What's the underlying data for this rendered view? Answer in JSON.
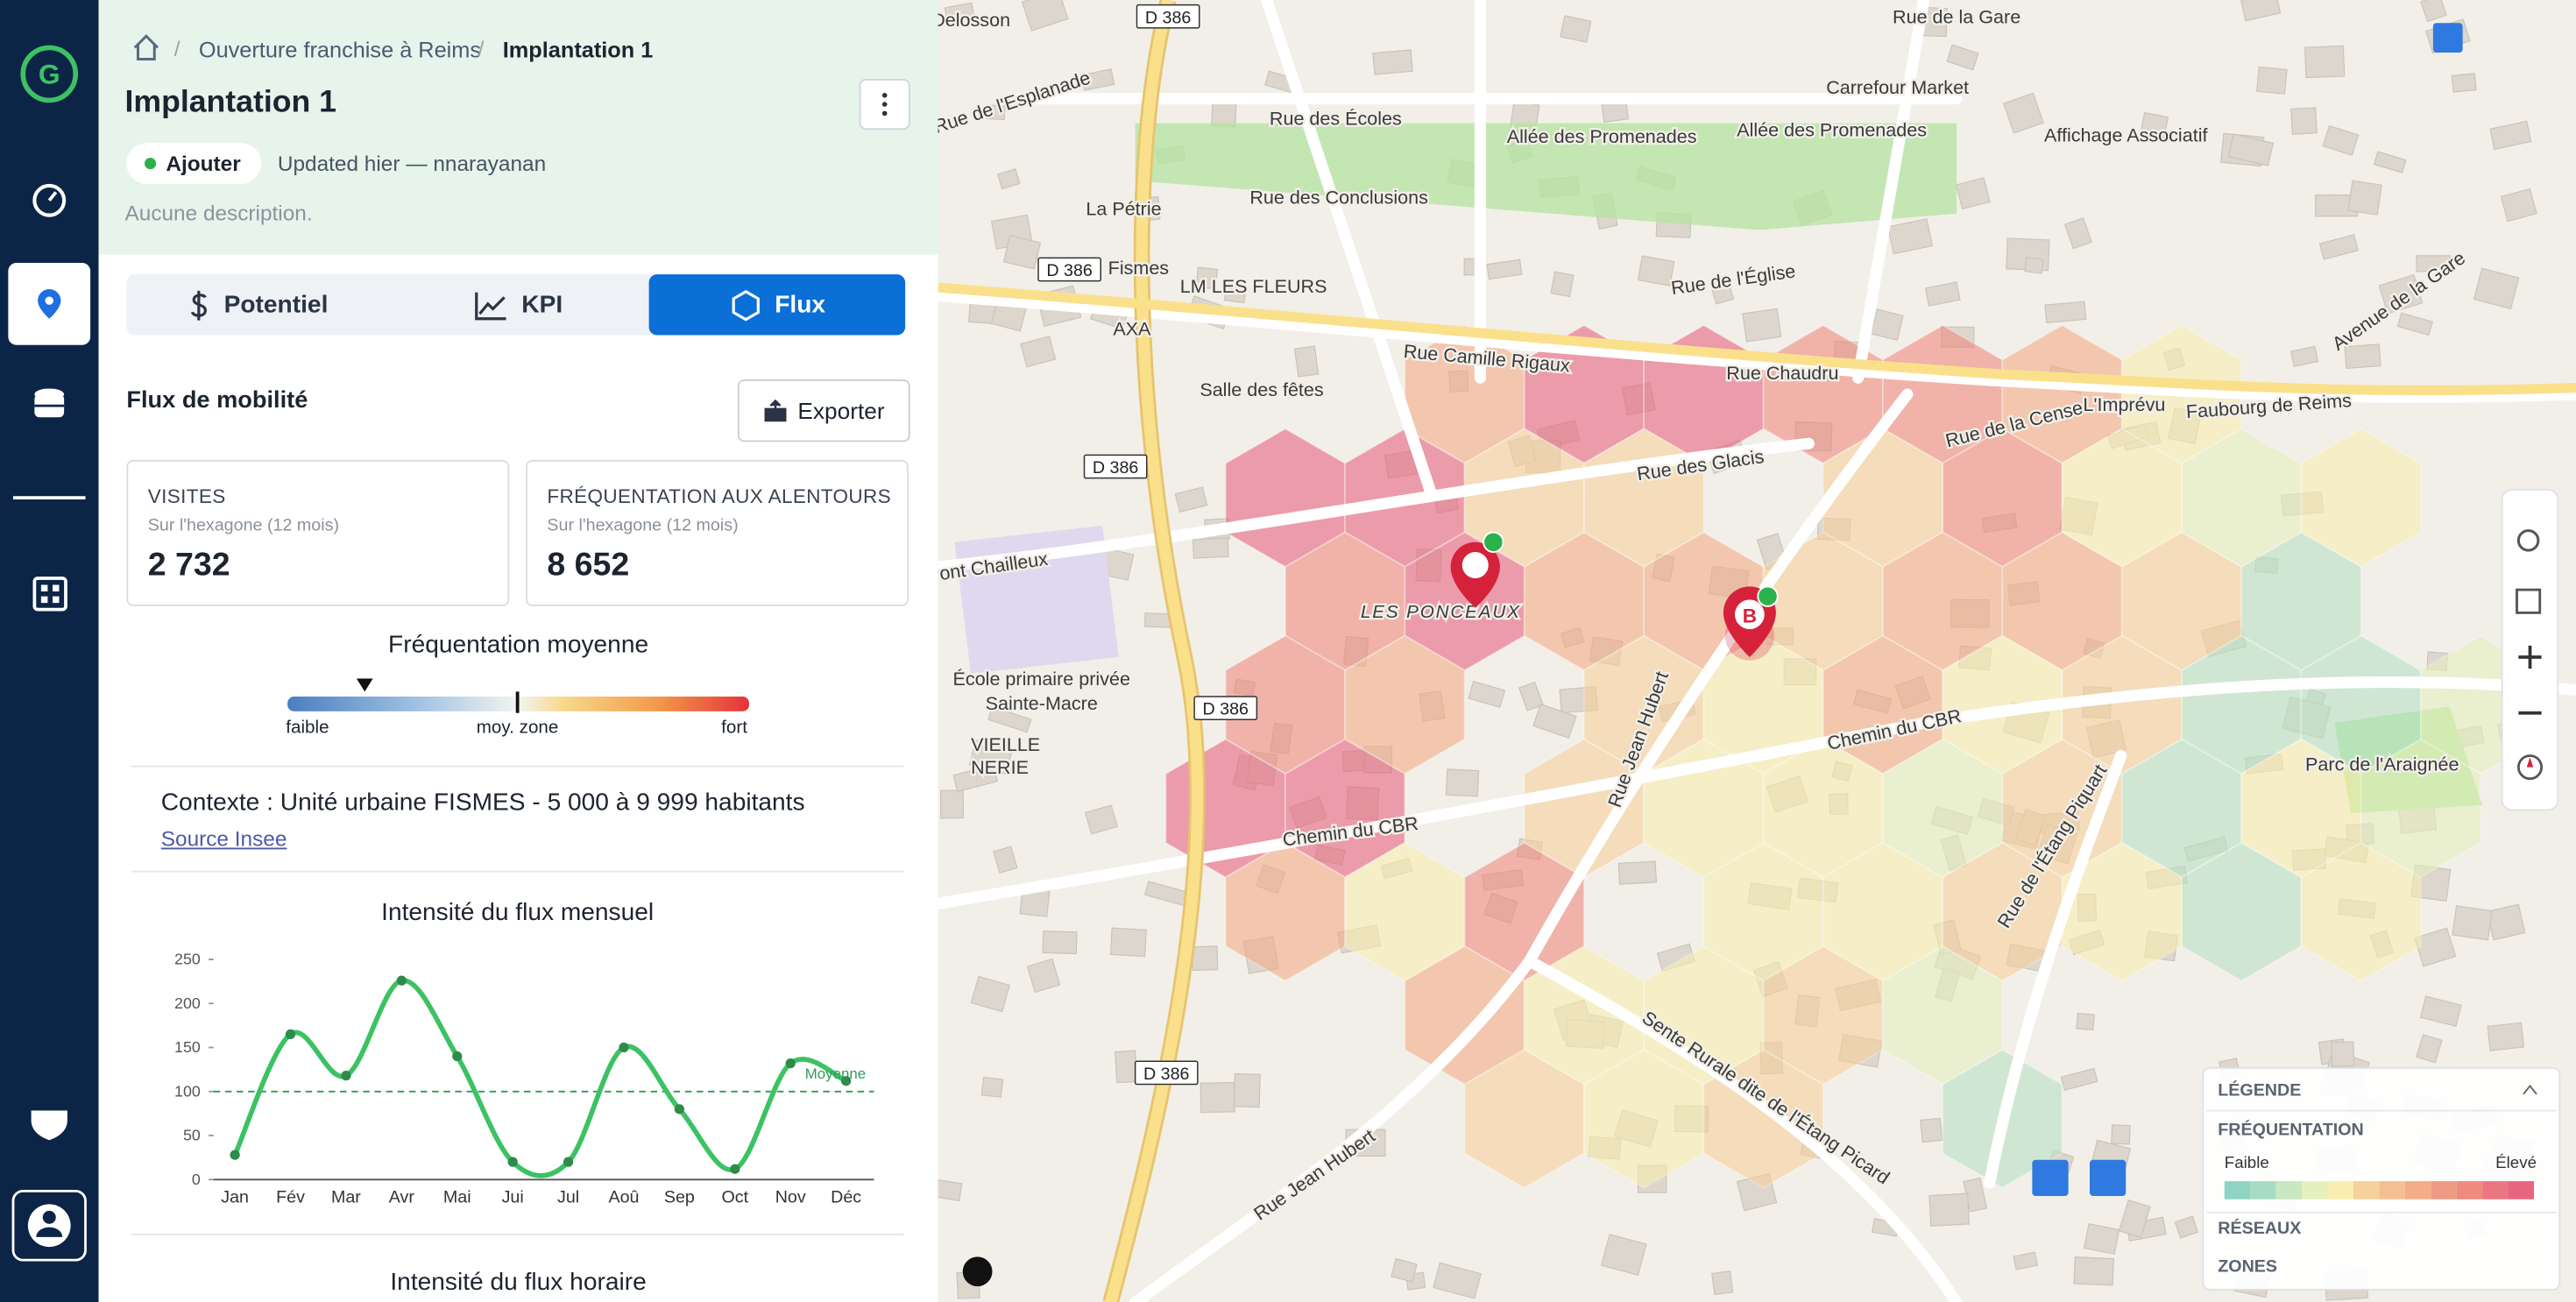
{
  "breadcrumb": [
    "Ouverture franchise à Reims",
    "Implantation 1"
  ],
  "header": {
    "title": "Implantation 1",
    "status": "Ajouter",
    "updated": "Updated hier — nnarayanan",
    "description": "Aucune description."
  },
  "tabs": [
    "Potentiel",
    "KPI",
    "Flux"
  ],
  "section": {
    "title": "Flux de mobilité",
    "export": "Exporter"
  },
  "cards": [
    {
      "label": "VISITES",
      "sub": "Sur l'hexagone (12 mois)",
      "value": "2 732"
    },
    {
      "label": "FRÉQUENTATION AUX ALENTOURS",
      "sub": "Sur l'hexagone (12 mois)",
      "value": "8 652"
    }
  ],
  "gauge": {
    "title": "Fréquentation moyenne",
    "low": "faible",
    "mid": "moy. zone",
    "high": "fort"
  },
  "context": {
    "text": "Contexte : Unité urbaine FISMES - 5 000 à 9 999 habitants",
    "link": "Source Insee"
  },
  "chart_data": {
    "type": "line",
    "title": "Intensité du flux mensuel",
    "categories": [
      "Jan",
      "Fév",
      "Mar",
      "Avr",
      "Mai",
      "Jui",
      "Jul",
      "Aoû",
      "Sep",
      "Oct",
      "Nov",
      "Déc"
    ],
    "values": [
      28,
      165,
      118,
      226,
      140,
      20,
      20,
      150,
      80,
      12,
      132,
      112
    ],
    "color": "#3cc263",
    "ylim": [
      0,
      250
    ],
    "yticks": [
      0,
      50,
      100,
      150,
      200,
      250
    ],
    "reference": {
      "value": 100,
      "label": "Moyenne",
      "color": "#2e9b55"
    }
  },
  "next_title": "Intensité du flux horaire",
  "map": {
    "labels": [
      "D 386",
      "D 386",
      "D 386",
      "D 386",
      "D 386",
      "Rue des Écoles",
      "Allée des Promenades",
      "Allée des Promenades",
      "Rue de l'Esplanade",
      "La Pétrie",
      "Rue des Conclusions",
      "Fismes",
      "LM LES FLEURS",
      "AXA",
      "Rue de l'Église",
      "Rue Camille Rigaux",
      "Rue Chaudru",
      "Salle des fêtes",
      "Carrefour Market",
      "Affichage Associatif",
      "Rue de la Gare",
      "Rue de la Cense",
      "L'Imprévu",
      "Faubourg de Reims",
      "Rue des Glacis",
      "LES PONCEAUX",
      "École primaire privée",
      "Sainte-Macre",
      "Chemin du CBR",
      "Chemin du CBR",
      "Rue Jean Hubert",
      "Rue de l'Étang Piquart",
      "Parc de l'Araignée",
      "Sente Rurale dite de l'Étang Picard",
      "Rue Jean Hubert",
      "VIEILLE",
      "NERIE",
      "Avenue de la Gare",
      "Delosson",
      "Pont Chailleux"
    ],
    "marker": "B",
    "legend": {
      "title": "LÉGENDE",
      "section": "FRÉQUENTATION",
      "low": "Faible",
      "high": "Élevé",
      "networks": "RÉSEAUX",
      "zones": "ZONES"
    }
  }
}
